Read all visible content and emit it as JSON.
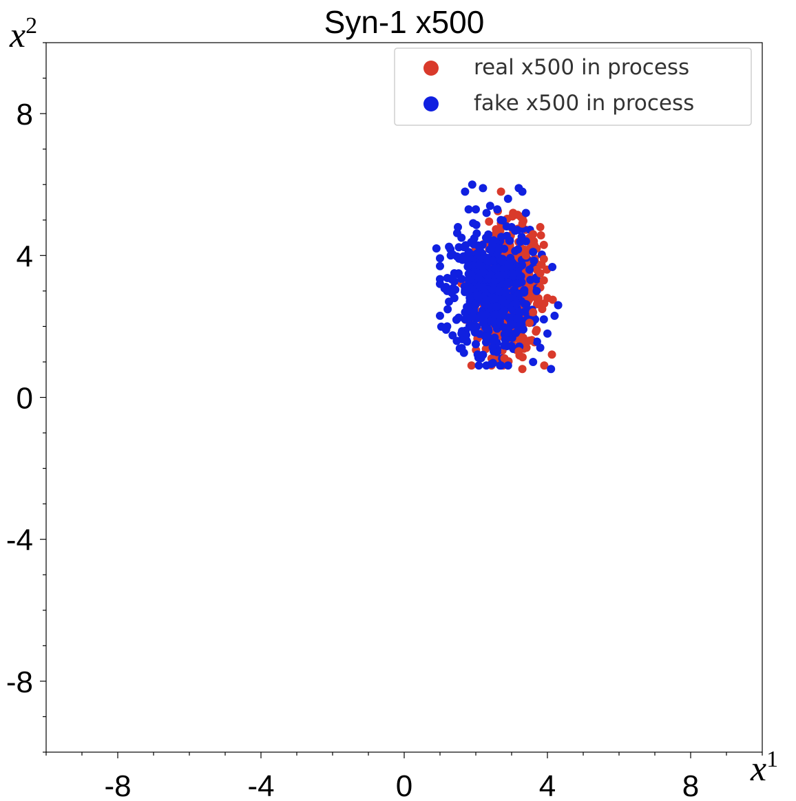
{
  "chart_data": {
    "type": "scatter",
    "title": "Syn-1 x500",
    "xlabel": "x",
    "xlabel_sup": "1",
    "ylabel": "x",
    "ylabel_sup": "2",
    "xlim": [
      -10,
      10
    ],
    "ylim": [
      -10,
      10
    ],
    "xticks": [
      -8,
      -4,
      0,
      4,
      8
    ],
    "yticks": [
      8,
      4,
      0,
      -4,
      -8
    ],
    "xtick_labels": [
      "-8",
      "-4",
      "0",
      "4",
      "8"
    ],
    "ytick_labels": [
      "8",
      "4",
      "0",
      "-4",
      "-8"
    ],
    "grid": false,
    "legend_position": "top-right",
    "series": [
      {
        "name": "real x500 in process",
        "color": "#d93a2b",
        "distribution": {
          "mean_x": 2.9,
          "mean_y": 3.0,
          "std_x": 0.45,
          "std_y": 0.9,
          "count": 500
        },
        "points": [
          [
            3.8,
            4.8
          ],
          [
            3.3,
            4.9
          ],
          [
            3.5,
            4.5
          ],
          [
            3.9,
            4.3
          ],
          [
            3.7,
            4.2
          ],
          [
            3.9,
            3.9
          ],
          [
            3.8,
            3.5
          ],
          [
            3.8,
            3.1
          ],
          [
            3.7,
            2.8
          ],
          [
            4.0,
            2.8
          ],
          [
            3.6,
            2.4
          ],
          [
            3.5,
            2.1
          ],
          [
            3.5,
            1.6
          ],
          [
            3.2,
            1.3
          ],
          [
            2.9,
            1.0
          ],
          [
            3.3,
            0.8
          ],
          [
            2.8,
            1.1
          ],
          [
            3.7,
            1.9
          ],
          [
            3.9,
            3.3
          ],
          [
            3.6,
            4.6
          ],
          [
            3.4,
            4.0
          ],
          [
            3.7,
            3.6
          ]
        ]
      },
      {
        "name": "fake x500 in process",
        "color": "#1020e0",
        "distribution": {
          "mean_x": 2.4,
          "mean_y": 3.0,
          "std_x": 0.55,
          "std_y": 0.85,
          "count": 500
        },
        "points": [
          [
            1.7,
            5.8
          ],
          [
            1.9,
            6.0
          ],
          [
            2.2,
            5.9
          ],
          [
            3.2,
            5.9
          ],
          [
            3.3,
            5.8
          ],
          [
            1.8,
            5.3
          ],
          [
            2.0,
            5.3
          ],
          [
            2.4,
            5.4
          ],
          [
            2.6,
            5.3
          ],
          [
            3.4,
            5.2
          ],
          [
            2.7,
            5.0
          ],
          [
            2.3,
            5.2
          ],
          [
            1.5,
            4.8
          ],
          [
            1.6,
            4.5
          ],
          [
            0.9,
            4.2
          ],
          [
            1.0,
            3.7
          ],
          [
            1.4,
            3.5
          ],
          [
            1.2,
            3.0
          ],
          [
            1.4,
            2.8
          ],
          [
            1.0,
            2.3
          ],
          [
            1.2,
            2.0
          ],
          [
            1.6,
            1.8
          ],
          [
            2.0,
            1.5
          ],
          [
            2.2,
            1.2
          ],
          [
            2.7,
            0.9
          ],
          [
            2.9,
            0.9
          ],
          [
            3.6,
            1.0
          ],
          [
            4.1,
            0.8
          ],
          [
            3.8,
            1.4
          ],
          [
            4.0,
            1.8
          ],
          [
            4.2,
            2.3
          ],
          [
            4.3,
            2.6
          ],
          [
            3.9,
            2.2
          ],
          [
            3.7,
            3.0
          ],
          [
            3.5,
            3.6
          ],
          [
            3.6,
            4.1
          ],
          [
            3.4,
            4.4
          ],
          [
            3.1,
            4.7
          ],
          [
            1.3,
            4.0
          ],
          [
            1.8,
            4.1
          ],
          [
            2.9,
            5.6
          ],
          [
            3.0,
            4.8
          ],
          [
            1.7,
            2.4
          ],
          [
            2.5,
            1.3
          ]
        ]
      }
    ]
  }
}
